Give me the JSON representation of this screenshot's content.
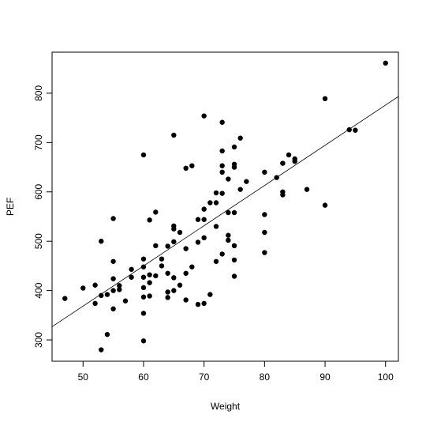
{
  "chart_data": {
    "type": "scatter",
    "x_label": "Weight",
    "y_label": "PEF",
    "x": [
      47,
      50,
      52,
      52,
      53,
      53,
      53,
      54,
      54,
      55,
      55,
      55,
      55,
      55,
      56,
      56,
      57,
      58,
      58,
      60,
      60,
      60,
      60,
      60,
      60,
      60,
      60,
      61,
      61,
      61,
      61,
      62,
      62,
      62,
      63,
      63,
      64,
      64,
      64,
      64,
      65,
      65,
      65,
      65,
      65,
      65,
      66,
      66,
      67,
      67,
      67,
      67,
      68,
      68,
      69,
      69,
      69,
      70,
      70,
      70,
      70,
      70,
      71,
      71,
      72,
      72,
      72,
      72,
      73,
      73,
      73,
      73,
      73,
      73,
      74,
      74,
      74,
      74,
      75,
      75,
      75,
      75,
      75,
      75,
      75,
      76,
      76,
      77,
      80,
      80,
      80,
      80,
      82,
      83,
      83,
      83,
      84,
      85,
      85,
      87,
      90,
      90,
      94,
      95,
      100
    ],
    "y": [
      384,
      405,
      411,
      374,
      500,
      390,
      280,
      392,
      311,
      546,
      459,
      424,
      400,
      363,
      410,
      402,
      379,
      427,
      443,
      675,
      464,
      448,
      427,
      406,
      387,
      354,
      298,
      543,
      432,
      416,
      389,
      559,
      491,
      430,
      464,
      450,
      490,
      435,
      397,
      386,
      715,
      531,
      525,
      499,
      426,
      400,
      518,
      411,
      648,
      485,
      435,
      381,
      653,
      448,
      544,
      498,
      372,
      754,
      565,
      544,
      507,
      374,
      578,
      392,
      598,
      578,
      530,
      459,
      741,
      683,
      653,
      640,
      597,
      474,
      626,
      558,
      512,
      502,
      691,
      656,
      650,
      558,
      491,
      462,
      429,
      709,
      605,
      621,
      640,
      554,
      518,
      477,
      629,
      658,
      600,
      594,
      675,
      667,
      662,
      605,
      789,
      573,
      726,
      725,
      861
    ],
    "color": "#000000",
    "fit_line": {
      "intercept": -39,
      "slope": 8.15,
      "color": "#000000"
    },
    "xlim": [
      44.88,
      102.12
    ],
    "ylim": [
      256.8,
      883.2
    ],
    "xticks": [
      50,
      60,
      70,
      80,
      90,
      100
    ],
    "yticks": [
      300,
      400,
      500,
      600,
      700,
      800
    ]
  }
}
